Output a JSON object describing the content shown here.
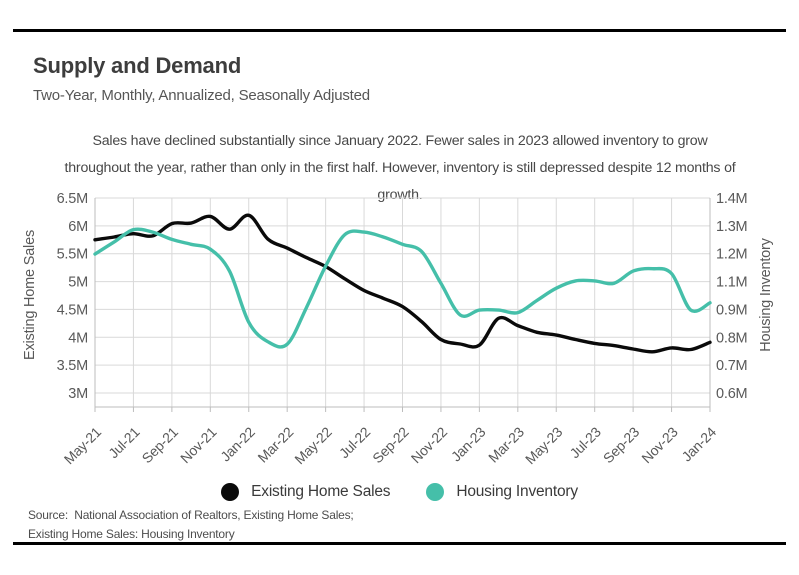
{
  "page": {
    "title": "Supply and Demand",
    "subtitle": "Two-Year, Monthly, Annualized, Seasonally Adjusted",
    "description": "Sales have declined substantially since January 2022. Fewer sales in 2023 allowed inventory to grow throughout the year, rather than only in the first half. However, inventory is still depressed despite 12 months of growth.",
    "source_line1": "Source:  National Association of Realtors, Existing Home Sales;",
    "source_line2": "Existing Home Sales: Housing Inventory"
  },
  "legend": {
    "items": [
      {
        "label": "Existing Home Sales",
        "color": "#0a0a0a"
      },
      {
        "label": "Housing Inventory",
        "color": "#45bfa9"
      }
    ]
  },
  "colors": {
    "existing_home_sales": "#0a0a0a",
    "housing_inventory": "#45bfa9",
    "gridline": "#d9d9d9",
    "axis_border": "#bdbdbd",
    "tick_text": "#595959"
  },
  "chart_data": {
    "type": "line",
    "title": "Supply and Demand",
    "x": [
      "May-21",
      "Jun-21",
      "Jul-21",
      "Aug-21",
      "Sep-21",
      "Oct-21",
      "Nov-21",
      "Dec-21",
      "Jan-22",
      "Feb-22",
      "Mar-22",
      "Apr-22",
      "May-22",
      "Jun-22",
      "Jul-22",
      "Aug-22",
      "Sep-22",
      "Oct-22",
      "Nov-22",
      "Dec-22",
      "Jan-23",
      "Feb-23",
      "Mar-23",
      "Apr-23",
      "May-23",
      "Jun-23",
      "Jul-23",
      "Aug-23",
      "Sep-23",
      "Oct-23",
      "Nov-23",
      "Dec-23",
      "Jan-24"
    ],
    "x_tick_labels": [
      "May-21",
      "Jul-21",
      "Sep-21",
      "Nov-21",
      "Jan-22",
      "Mar-22",
      "May-22",
      "Jul-22",
      "Sep-22",
      "Nov-22",
      "Jan-23",
      "Mar-23",
      "May-23",
      "Jul-23",
      "Sep-23",
      "Nov-23",
      "Jan-24"
    ],
    "series": [
      {
        "name": "Existing Home Sales",
        "axis": "left",
        "color": "#0a0a0a",
        "values": [
          5.75,
          5.8,
          5.86,
          5.82,
          6.04,
          6.05,
          6.17,
          5.94,
          6.19,
          5.76,
          5.6,
          5.43,
          5.27,
          5.05,
          4.84,
          4.7,
          4.55,
          4.28,
          3.96,
          3.88,
          3.86,
          4.34,
          4.21,
          4.09,
          4.04,
          3.96,
          3.89,
          3.85,
          3.79,
          3.74,
          3.81,
          3.78,
          3.91
        ]
      },
      {
        "name": "Housing Inventory",
        "axis": "right",
        "color": "#45bfa9",
        "values": [
          1.17,
          1.22,
          1.27,
          1.26,
          1.23,
          1.21,
          1.19,
          1.1,
          0.89,
          0.81,
          0.8,
          0.95,
          1.12,
          1.25,
          1.26,
          1.24,
          1.21,
          1.18,
          1.05,
          0.92,
          0.94,
          0.94,
          0.93,
          0.98,
          1.03,
          1.06,
          1.06,
          1.05,
          1.1,
          1.11,
          1.09,
          0.94,
          0.97
        ]
      }
    ],
    "left_axis": {
      "label": "Existing Home Sales",
      "min": 3.0,
      "max": 6.5,
      "tick_labels": [
        "6.5M",
        "6M",
        "5.5M",
        "5M",
        "4.5M",
        "4M",
        "3.5M",
        "3M"
      ]
    },
    "right_axis": {
      "label": "Housing Inventory",
      "min": 0.6,
      "max": 1.4,
      "tick_labels": [
        "1.4M",
        "1.3M",
        "1.2M",
        "1.1M",
        "0.9M",
        "0.8M",
        "0.7M",
        "0.6M"
      ]
    },
    "grid": true,
    "legend_position": "bottom"
  }
}
